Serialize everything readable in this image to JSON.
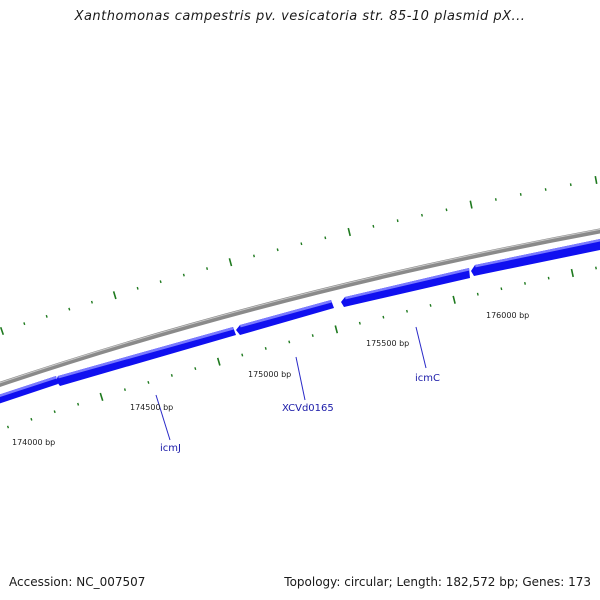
{
  "title": "Xanthomonas campestris pv. vesicatoria str. 85-10 plasmid pX...",
  "footer": {
    "accession": "Accession: NC_007507",
    "summary": "Topology: circular; Length: 182,572 bp; Genes: 173"
  },
  "colors": {
    "backbone": "#8a8a8a",
    "gene_fill": "#1010f0",
    "gene_highlight": "#7a7aff",
    "tick": "#1f7a1f",
    "gene_label": "#1a1aa8",
    "callout_line": "#2a2ac8"
  },
  "position_labels": [
    "174000 bp",
    "174500 bp",
    "175000 bp",
    "175500 bp",
    "176000 bp"
  ],
  "gene_labels": [
    "icmJ",
    "XCVd0165",
    "icmC"
  ]
}
